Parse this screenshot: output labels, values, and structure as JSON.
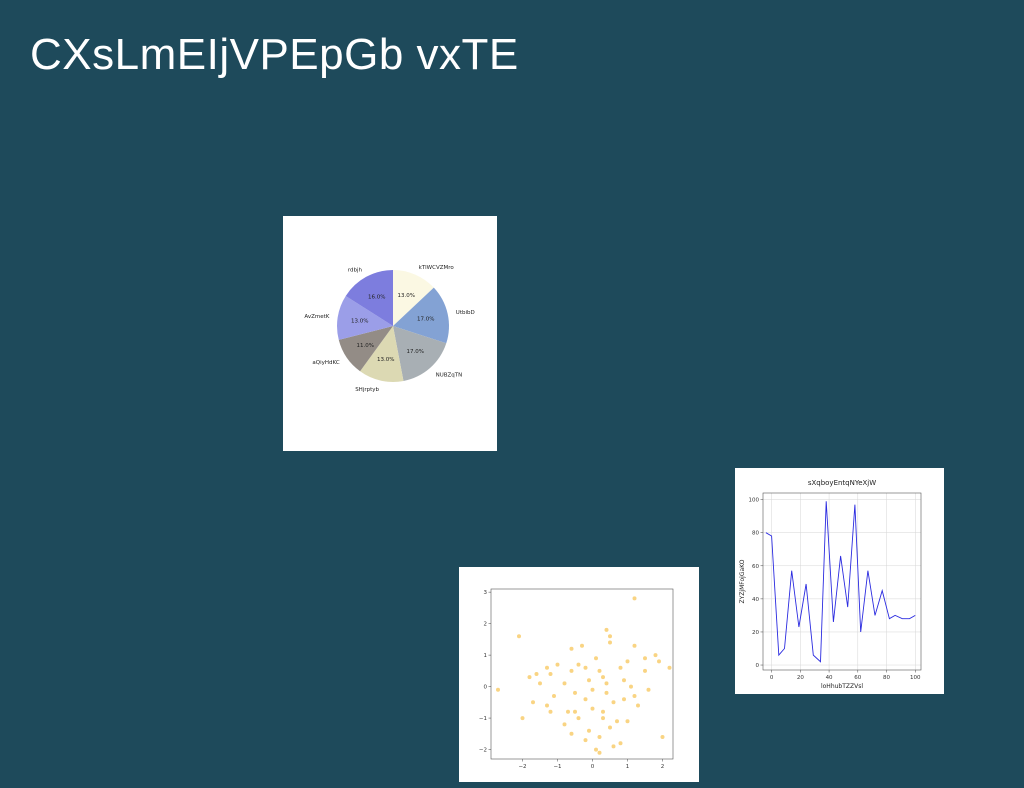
{
  "slide": {
    "title": "CXsLmEIjVPEpGb vxTE"
  },
  "colors": {
    "background": "#1e4a5b",
    "title_text": "#ffffff",
    "card_background": "#ffffff"
  },
  "chart_data": [
    {
      "type": "pie",
      "title": "",
      "categories": [
        "kTlWCVZMro",
        "UtbibD",
        "NUBZqTN",
        "SHjrptyb",
        "aQiyHdKC",
        "AvZmetK",
        "rdbjh"
      ],
      "values": [
        13.0,
        17.0,
        17.0,
        13.0,
        11.0,
        13.0,
        16.0
      ],
      "percent_labels": [
        "13.0%",
        "17.0%",
        "17.0%",
        "13.0%",
        "11.0%",
        "13.0%",
        "16.0%"
      ],
      "colors": [
        "#fbf8e3",
        "#83a2d4",
        "#a8afb4",
        "#dcd9b3",
        "#938c86",
        "#9b9ee8",
        "#7d7dde"
      ],
      "start_angle_deg": 90,
      "direction": "clockwise"
    },
    {
      "type": "scatter",
      "title": "",
      "xlabel": "",
      "ylabel": "",
      "xlim": [
        -2.9,
        2.3
      ],
      "ylim": [
        -2.3,
        3.1
      ],
      "xticks": [
        -2,
        -1,
        0,
        1,
        2
      ],
      "xtick_labels": [
        "−2",
        "−1",
        "0",
        "1",
        "2"
      ],
      "yticks": [
        -2,
        -1,
        0,
        1,
        2,
        3
      ],
      "ytick_labels": [
        "−2",
        "−1",
        "0",
        "1",
        "2",
        "3"
      ],
      "color": "#f7c65a",
      "grid": false,
      "points": [
        [
          1.2,
          2.8
        ],
        [
          -2.1,
          1.6
        ],
        [
          0.4,
          1.8
        ],
        [
          0.5,
          1.6
        ],
        [
          1.2,
          1.3
        ],
        [
          0.5,
          1.4
        ],
        [
          -0.3,
          1.3
        ],
        [
          -0.6,
          1.2
        ],
        [
          1.8,
          1.0
        ],
        [
          1.9,
          0.8
        ],
        [
          1.5,
          0.9
        ],
        [
          1.0,
          0.8
        ],
        [
          0.1,
          0.9
        ],
        [
          -0.4,
          0.7
        ],
        [
          -1.0,
          0.7
        ],
        [
          -1.3,
          0.6
        ],
        [
          2.2,
          0.6
        ],
        [
          1.5,
          0.5
        ],
        [
          0.8,
          0.6
        ],
        [
          0.2,
          0.5
        ],
        [
          -0.2,
          0.6
        ],
        [
          -0.6,
          0.5
        ],
        [
          -1.2,
          0.4
        ],
        [
          -1.6,
          0.4
        ],
        [
          -1.8,
          0.3
        ],
        [
          -0.1,
          0.2
        ],
        [
          0.3,
          0.3
        ],
        [
          0.9,
          0.2
        ],
        [
          -0.8,
          0.1
        ],
        [
          -1.5,
          0.1
        ],
        [
          1.1,
          0.0
        ],
        [
          1.6,
          -0.1
        ],
        [
          -2.7,
          -0.1
        ],
        [
          0.0,
          -0.1
        ],
        [
          0.4,
          -0.2
        ],
        [
          -0.5,
          -0.2
        ],
        [
          -1.1,
          -0.3
        ],
        [
          0.9,
          -0.4
        ],
        [
          -0.2,
          -0.4
        ],
        [
          -1.7,
          -0.5
        ],
        [
          0.6,
          -0.5
        ],
        [
          -1.3,
          -0.6
        ],
        [
          1.3,
          -0.6
        ],
        [
          -0.5,
          -0.8
        ],
        [
          -0.7,
          -0.8
        ],
        [
          0.0,
          -0.7
        ],
        [
          0.3,
          -0.8
        ],
        [
          -1.2,
          -0.8
        ],
        [
          -2.0,
          -1.0
        ],
        [
          -0.4,
          -1.0
        ],
        [
          0.3,
          -1.0
        ],
        [
          0.7,
          -1.1
        ],
        [
          1.0,
          -1.1
        ],
        [
          -0.8,
          -1.2
        ],
        [
          0.5,
          -1.3
        ],
        [
          -0.1,
          -1.4
        ],
        [
          0.2,
          -1.6
        ],
        [
          2.0,
          -1.6
        ],
        [
          0.8,
          -1.8
        ],
        [
          -0.6,
          -1.5
        ],
        [
          0.6,
          -1.9
        ],
        [
          0.1,
          -2.0
        ],
        [
          0.2,
          -2.1
        ],
        [
          -0.2,
          -1.7
        ],
        [
          1.2,
          -0.3
        ],
        [
          0.4,
          0.1
        ]
      ]
    },
    {
      "type": "line",
      "title": "sXqboyEntqNYeXjW",
      "xlabel": "loHhubTZZVsl",
      "ylabel": "ZYZjMFojGaKO",
      "xlim": [
        -6,
        104
      ],
      "ylim": [
        -3,
        104
      ],
      "xticks": [
        0,
        20,
        40,
        60,
        80,
        100
      ],
      "yticks": [
        0,
        20,
        40,
        60,
        80,
        100
      ],
      "color": "#2b2be0",
      "grid": true,
      "series": [
        {
          "x": [
            -4,
            0,
            5,
            9,
            14,
            19,
            24,
            29,
            34,
            38,
            43,
            48,
            53,
            58,
            62,
            67,
            72,
            77,
            82,
            86,
            91,
            96,
            100
          ],
          "y": [
            80,
            78,
            6,
            10,
            57,
            23,
            49,
            6,
            2,
            99,
            26,
            66,
            35,
            97,
            20,
            57,
            30,
            45,
            28,
            30,
            28,
            28,
            30
          ]
        }
      ]
    }
  ]
}
